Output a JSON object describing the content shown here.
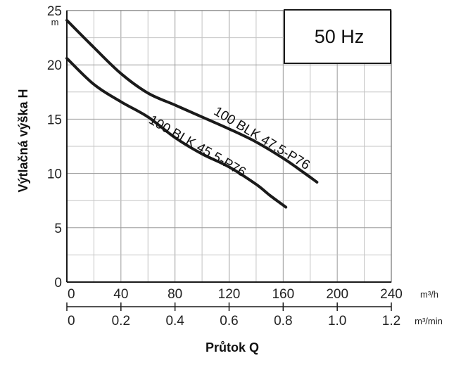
{
  "chart_data": {
    "type": "line",
    "frequency_label": "50 Hz",
    "ylabel": "Výtlačná výška H",
    "yunit": "m",
    "xlabel": "Průtok Q",
    "x_primary": {
      "unit": "m³/h",
      "ticks": [
        "0",
        "40",
        "80",
        "120",
        "160",
        "200",
        "240"
      ],
      "range": [
        0,
        240
      ]
    },
    "x_secondary": {
      "unit": "m³/min",
      "ticks": [
        "0",
        "0.2",
        "0.4",
        "0.6",
        "0.8",
        "1.0",
        "1.2"
      ],
      "range": [
        0,
        1.2
      ]
    },
    "y": {
      "ticks": [
        "0",
        "5",
        "10",
        "15",
        "20",
        "25"
      ],
      "range": [
        0,
        25
      ]
    },
    "grid": true,
    "series": [
      {
        "name": "100 BLK 47.5-P76",
        "color": "#1a1a1a",
        "x": [
          0,
          20,
          40,
          60,
          80,
          100,
          120,
          140,
          160,
          175,
          185
        ],
        "y": [
          24.1,
          21.6,
          19.2,
          17.4,
          16.3,
          15.2,
          14.1,
          12.9,
          11.4,
          10.1,
          9.2
        ]
      },
      {
        "name": "100 BLK 45.5-P76",
        "color": "#1a1a1a",
        "x": [
          0,
          20,
          40,
          60,
          80,
          100,
          120,
          140,
          150,
          162
        ],
        "y": [
          20.6,
          18.2,
          16.6,
          15.2,
          13.3,
          11.8,
          10.6,
          9.0,
          8.0,
          6.9
        ]
      }
    ]
  }
}
